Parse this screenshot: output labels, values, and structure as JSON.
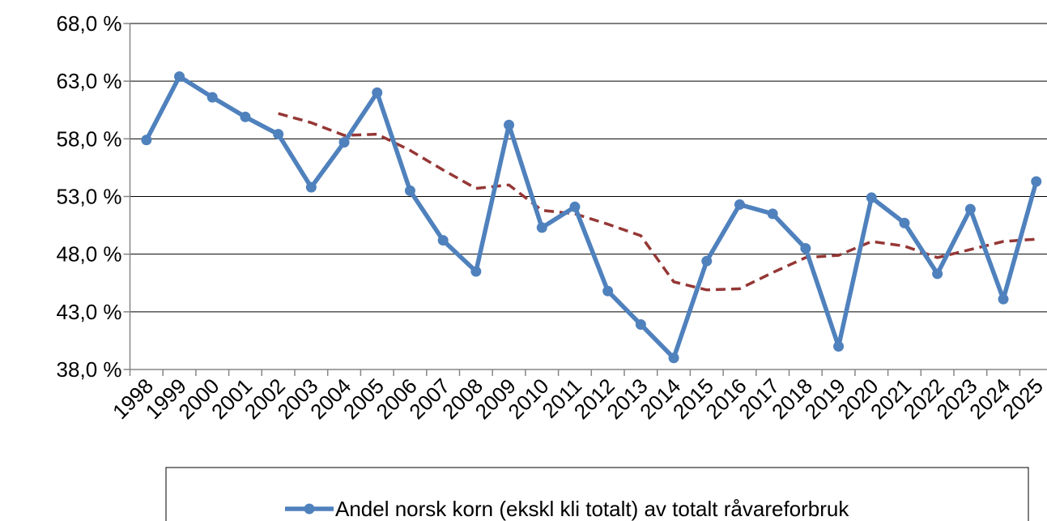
{
  "chart_data": {
    "type": "line",
    "categories": [
      "1998",
      "1999",
      "2000",
      "2001",
      "2002",
      "2003",
      "2004",
      "2005",
      "2006",
      "2007",
      "2008",
      "2009",
      "2010",
      "2011",
      "2012",
      "2013",
      "2014",
      "2015",
      "2016",
      "2017",
      "2018",
      "2019",
      "2020",
      "2021",
      "2022",
      "2023",
      "2024",
      "2025"
    ],
    "series": [
      {
        "name": "Andel norsk korn (ekskl kli totalt) av totalt råvareforbruk",
        "color": "#4f81bd",
        "values": [
          57.9,
          63.4,
          61.6,
          59.9,
          58.4,
          53.8,
          57.7,
          62.0,
          53.5,
          49.2,
          46.5,
          59.2,
          50.3,
          52.1,
          44.8,
          41.9,
          39.0,
          47.4,
          52.3,
          51.5,
          48.5,
          40.0,
          52.9,
          50.7,
          46.3,
          51.9,
          44.1,
          54.3
        ]
      }
    ],
    "trend": {
      "color": "#953735",
      "values": [
        null,
        null,
        null,
        null,
        60.2,
        59.4,
        58.3,
        58.4,
        57.0,
        55.3,
        53.7,
        54.0,
        51.8,
        51.5,
        50.6,
        49.6,
        45.6,
        44.9,
        45.0,
        46.4,
        47.7,
        47.9,
        49.1,
        48.7,
        47.7,
        48.4,
        49.1,
        49.3
      ]
    },
    "ylim": [
      38,
      68
    ],
    "yticks": [
      {
        "value": 38,
        "label": "38,0 %"
      },
      {
        "value": 43,
        "label": "43,0 %"
      },
      {
        "value": 48,
        "label": "48,0 %"
      },
      {
        "value": 53,
        "label": "53,0 %"
      },
      {
        "value": 58,
        "label": "58,0 %"
      },
      {
        "value": 63,
        "label": "63,0 %"
      },
      {
        "value": 68,
        "label": "68,0 %"
      }
    ],
    "grid": true
  }
}
